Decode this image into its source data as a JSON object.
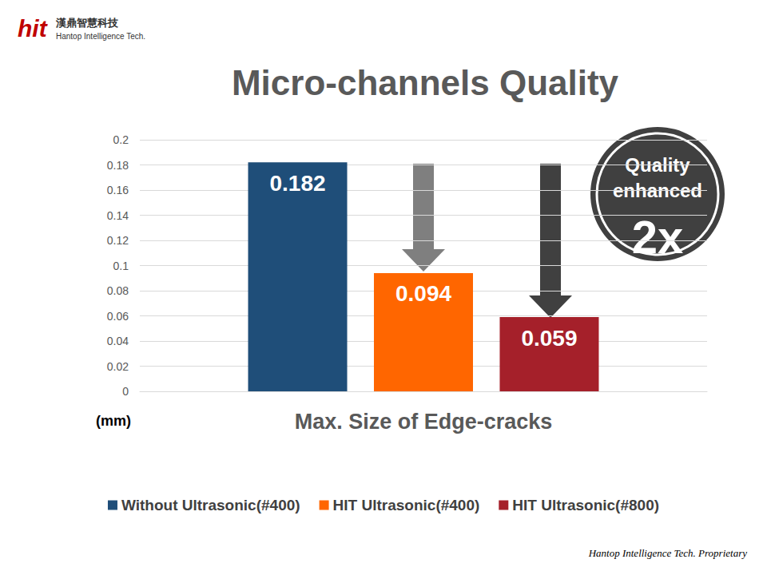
{
  "header": {
    "logo": "hit",
    "company": "漢鼎智慧科技",
    "company_en": "Hantop Intelligence Tech."
  },
  "footer": "Hantop Intelligence Tech. Proprietary",
  "chart_data": {
    "type": "bar",
    "title": "Micro-channels Quality",
    "ylabel": "(mm)",
    "categories": [
      "Max. Size of Edge-cracks"
    ],
    "series": [
      {
        "name": "Without Ultrasonic(#400)",
        "color": "#1f4e79",
        "values": [
          0.182
        ]
      },
      {
        "name": "HIT Ultrasonic(#400)",
        "color": "#ff6600",
        "values": [
          0.094
        ]
      },
      {
        "name": "HIT Ultrasonic(#800)",
        "color": "#a5202a",
        "values": [
          0.059
        ]
      }
    ],
    "ylim": [
      0,
      0.2
    ],
    "yticks": [
      0,
      0.02,
      0.04,
      0.06,
      0.08,
      0.1,
      0.12,
      0.14,
      0.16,
      0.18,
      0.2
    ],
    "grid": true,
    "legend": "bottom",
    "data_labels": true,
    "annotations": [
      "Quality enhanced",
      "2x"
    ]
  }
}
